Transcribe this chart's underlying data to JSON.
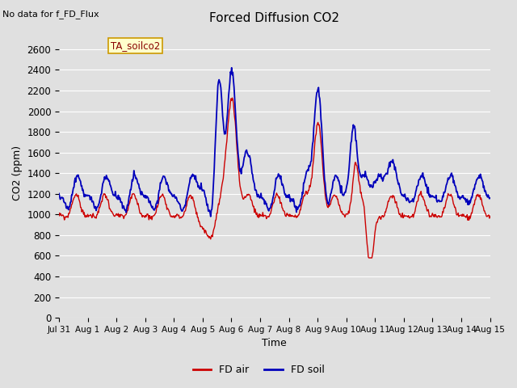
{
  "title": "Forced Diffusion CO2",
  "xlabel": "Time",
  "ylabel": "CO2 (ppm)",
  "top_left_text": "No data for f_FD_Flux",
  "annotation_box": "TA_soilco2",
  "ylim": [
    0,
    2800
  ],
  "yticks": [
    0,
    200,
    400,
    600,
    800,
    1000,
    1200,
    1400,
    1600,
    1800,
    2000,
    2200,
    2400,
    2600
  ],
  "xtick_labels": [
    "Jul 31",
    "Aug 1",
    "Aug 2",
    "Aug 3",
    "Aug 4",
    "Aug 5",
    "Aug 6",
    "Aug 7",
    "Aug 8",
    "Aug 9",
    "Aug 10",
    "Aug 11",
    "Aug 12",
    "Aug 13",
    "Aug 14",
    "Aug 15"
  ],
  "legend_entries": [
    "FD air",
    "FD soil"
  ],
  "background_color": "#e0e0e0",
  "plot_bg_color": "#e0e0e0",
  "grid_color": "#ffffff",
  "red_color": "#cc0000",
  "blue_color": "#0000bb",
  "n_days": 15,
  "n_points": 720
}
